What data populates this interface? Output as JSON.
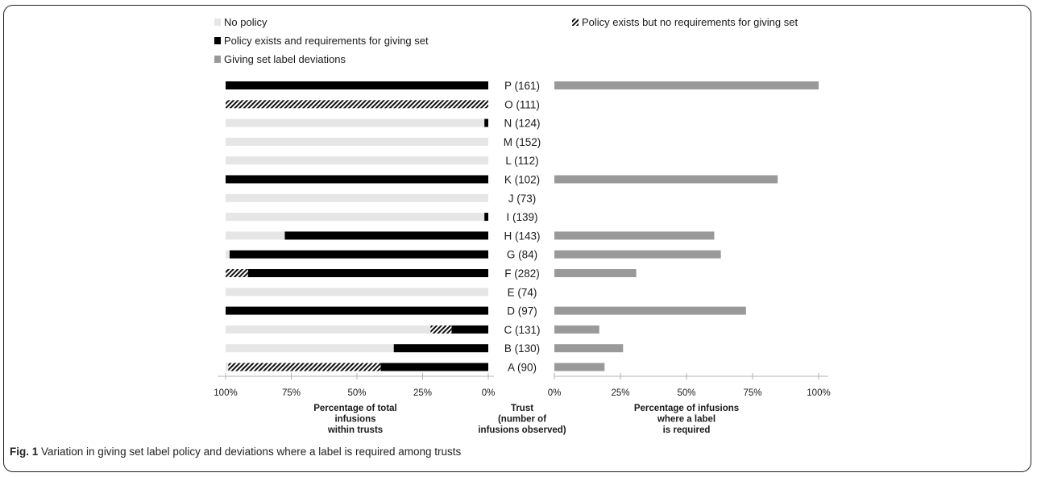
{
  "chart_data": {
    "type": "bar",
    "orientation": "horizontal",
    "legend": [
      {
        "label": "No policy",
        "fill": "#e6e6e6",
        "pattern": false
      },
      {
        "label": "Policy exists and requirements for giving set",
        "fill": "#000000",
        "pattern": false
      },
      {
        "label": "Giving set label deviations",
        "fill": "#999999",
        "pattern": false
      },
      {
        "label": "Policy exists but no requirements for giving set",
        "fill": "#000000",
        "pattern": true
      }
    ],
    "categories": [
      "P (161)",
      "O (111)",
      "N (124)",
      "M (152)",
      "L (112)",
      "K (102)",
      "J (73)",
      "I (139)",
      "H (143)",
      "G (84)",
      "F (282)",
      "E (74)",
      "D (97)",
      "C (131)",
      "B (130)",
      "A (90)"
    ],
    "left_panel": {
      "xlabel": "Percentage of total infusions within trusts",
      "xlabel_lines": [
        "Percentage of total",
        "infusions",
        "within trusts"
      ],
      "ticks": [
        "100%",
        "75%",
        "50%",
        "25%",
        "0%"
      ],
      "direction": "reversed",
      "xlim": [
        0,
        100
      ],
      "series": [
        {
          "name": "Policy exists and requirements for giving set",
          "values": [
            100,
            0,
            1.5,
            0,
            0,
            100,
            0,
            1.5,
            77.5,
            98.5,
            91.5,
            0,
            100,
            14,
            36,
            41
          ]
        },
        {
          "name": "Policy exists but no requirements for giving set",
          "values": [
            0,
            100,
            0,
            0,
            0,
            0,
            0,
            0,
            0,
            0,
            8.5,
            0,
            0,
            8,
            0,
            58
          ]
        },
        {
          "name": "No policy",
          "values": [
            0,
            0,
            98.5,
            100,
            100,
            0,
            100,
            98.5,
            22.5,
            1.5,
            0,
            100,
            0,
            78,
            64,
            1
          ]
        }
      ]
    },
    "center_label_lines": [
      "Trust",
      "(number of",
      "infusions observed)"
    ],
    "right_panel": {
      "xlabel": "Percentage of infusions where a label is required",
      "xlabel_lines": [
        "Percentage of infusions",
        "where a label",
        "is required"
      ],
      "ticks": [
        "0%",
        "25%",
        "50%",
        "75%",
        "100%"
      ],
      "xlim": [
        0,
        100
      ],
      "series": [
        {
          "name": "Giving set label deviations",
          "values": [
            100,
            null,
            null,
            null,
            null,
            84.5,
            null,
            null,
            60.5,
            63,
            31,
            null,
            72.5,
            17,
            26,
            19
          ]
        }
      ]
    }
  },
  "caption": {
    "label": "Fig. 1",
    "text": " Variation in giving set label policy and deviations where a label is required among trusts"
  }
}
